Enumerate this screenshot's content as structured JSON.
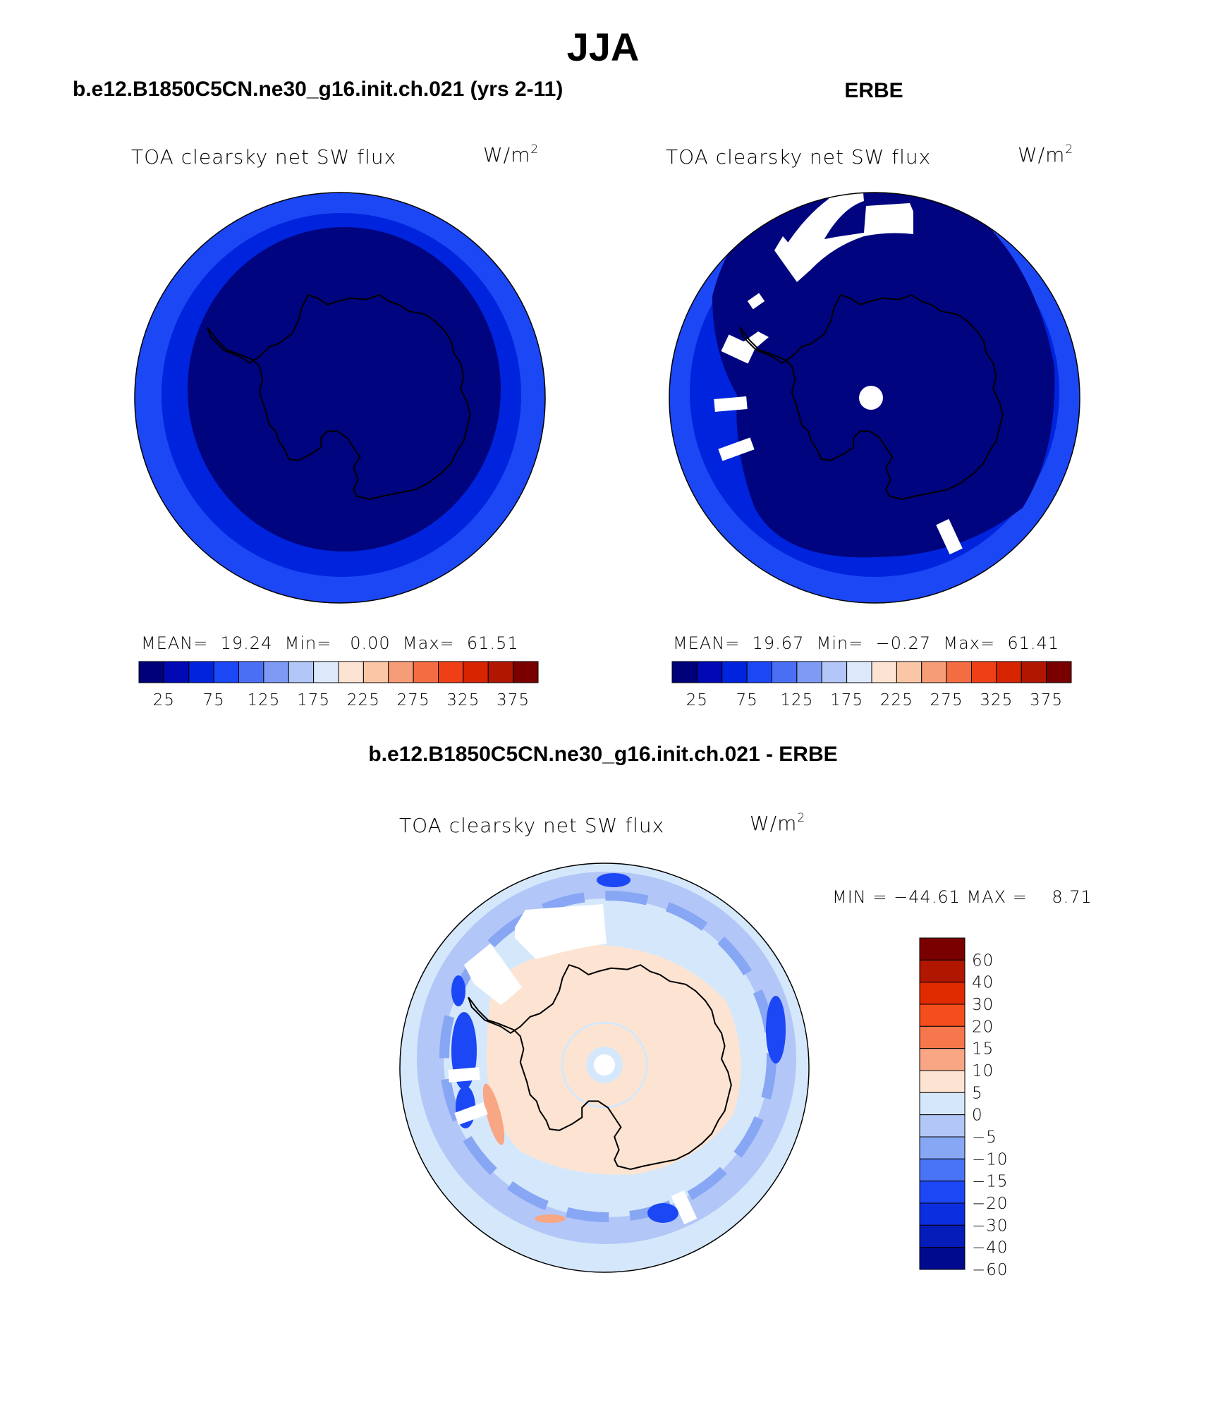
{
  "title": "JJA",
  "panels": [
    {
      "heading": "b.e12.B1850C5CN.ne30_g16.init.ch.021 (yrs 2-11)",
      "variable": "TOA clearsky net SW flux",
      "units": "W/m",
      "units_exp": "2",
      "stats": {
        "mean_label": "MEAN=",
        "mean": "19.24",
        "min_label": "Min=",
        "min": "0.00",
        "max_label": "Max=",
        "max": "61.51"
      }
    },
    {
      "heading": "ERBE",
      "variable": "TOA clearsky net SW flux",
      "units": "W/m",
      "units_exp": "2",
      "stats": {
        "mean_label": "MEAN=",
        "mean": "19.67",
        "min_label": "Min=",
        "min": "−0.27",
        "max_label": "Max=",
        "max": "61.41"
      }
    }
  ],
  "diff_panel": {
    "heading": "b.e12.B1850C5CN.ne30_g16.init.ch.021 - ERBE",
    "variable": "TOA clearsky net SW flux",
    "units": "W/m",
    "units_exp": "2",
    "minmax": "MIN = −44.61 MAX =    8.71"
  },
  "colorbar_horizontal": {
    "colors": [
      "#00007a",
      "#0009b4",
      "#0024dd",
      "#1c47f5",
      "#4a6ff5",
      "#7e9af4",
      "#b3c6f8",
      "#dce9fb",
      "#fde4d2",
      "#fbc6a6",
      "#f69c76",
      "#f46c42",
      "#ee3f16",
      "#d62500",
      "#b01600",
      "#7a0000"
    ],
    "tick_labels": [
      "25",
      "75",
      "125",
      "175",
      "225",
      "275",
      "325",
      "375"
    ]
  },
  "colorbar_vertical": {
    "colors_top_to_bottom": [
      "#7a0000",
      "#b01600",
      "#e02a00",
      "#f44e1c",
      "#f6774b",
      "#f8a684",
      "#fde4d2",
      "#d5e8fb",
      "#b3c6f8",
      "#87a6f4",
      "#4a74f6",
      "#1c47f5",
      "#0b2ee0",
      "#051cb8",
      "#000a8e"
    ],
    "tick_labels": [
      "60",
      "40",
      "30",
      "20",
      "15",
      "10",
      "5",
      "0",
      "−5",
      "−10",
      "−15",
      "−20",
      "−30",
      "−40",
      "−60"
    ]
  },
  "map_colors": {
    "dark_blue": "#00047e",
    "mid_blue": "#0024dd",
    "bright_blue": "#1c47f5",
    "diff_background": "#d5e8fb",
    "diff_light": "#b3c6f8",
    "diff_mid": "#87a6f4",
    "diff_strong": "#1c47f5",
    "diff_land": "#fde4d2",
    "diff_warm": "#f8a684"
  }
}
